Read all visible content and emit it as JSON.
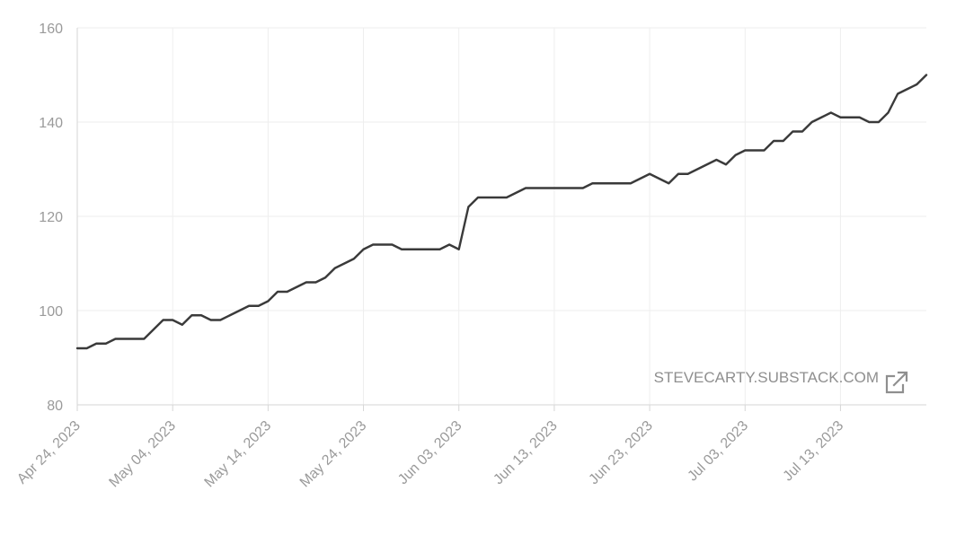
{
  "chart_data": {
    "type": "line",
    "title": "",
    "xlabel": "",
    "ylabel": "",
    "ylim": [
      80,
      160
    ],
    "yticks": [
      80,
      100,
      120,
      140,
      160
    ],
    "xticks": [
      "Apr 24, 2023",
      "May 04, 2023",
      "May 14, 2023",
      "May 24, 2023",
      "Jun 03, 2023",
      "Jun 13, 2023",
      "Jun 23, 2023",
      "Jul 03, 2023",
      "Jul 13, 2023"
    ],
    "xlim": [
      "2023-04-24",
      "2023-07-22"
    ],
    "grid": true,
    "line_color": "#3a3a3a",
    "grid_color": "#eeeeee",
    "axis_color": "#d6d6d6",
    "series": [
      {
        "x": [
          "2023-04-24",
          "2023-04-25",
          "2023-04-26",
          "2023-04-27",
          "2023-04-28",
          "2023-04-29",
          "2023-04-30",
          "2023-05-01",
          "2023-05-02",
          "2023-05-03",
          "2023-05-04",
          "2023-05-05",
          "2023-05-06",
          "2023-05-07",
          "2023-05-08",
          "2023-05-09",
          "2023-05-10",
          "2023-05-11",
          "2023-05-12",
          "2023-05-13",
          "2023-05-14",
          "2023-05-15",
          "2023-05-16",
          "2023-05-17",
          "2023-05-18",
          "2023-05-19",
          "2023-05-20",
          "2023-05-21",
          "2023-05-22",
          "2023-05-23",
          "2023-05-24",
          "2023-05-25",
          "2023-05-26",
          "2023-05-27",
          "2023-05-28",
          "2023-05-29",
          "2023-05-30",
          "2023-05-31",
          "2023-06-01",
          "2023-06-02",
          "2023-06-03",
          "2023-06-04",
          "2023-06-05",
          "2023-06-06",
          "2023-06-07",
          "2023-06-08",
          "2023-06-09",
          "2023-06-10",
          "2023-06-11",
          "2023-06-12",
          "2023-06-13",
          "2023-06-14",
          "2023-06-15",
          "2023-06-16",
          "2023-06-17",
          "2023-06-18",
          "2023-06-19",
          "2023-06-20",
          "2023-06-21",
          "2023-06-22",
          "2023-06-23",
          "2023-06-24",
          "2023-06-25",
          "2023-06-26",
          "2023-06-27",
          "2023-06-28",
          "2023-06-29",
          "2023-06-30",
          "2023-07-01",
          "2023-07-02",
          "2023-07-03",
          "2023-07-04",
          "2023-07-05",
          "2023-07-06",
          "2023-07-07",
          "2023-07-08",
          "2023-07-09",
          "2023-07-10",
          "2023-07-11",
          "2023-07-12",
          "2023-07-13",
          "2023-07-14",
          "2023-07-15",
          "2023-07-16",
          "2023-07-17",
          "2023-07-18",
          "2023-07-19",
          "2023-07-20",
          "2023-07-21",
          "2023-07-22"
        ],
        "y": [
          92,
          92,
          93,
          93,
          94,
          94,
          94,
          94,
          96,
          98,
          98,
          97,
          99,
          99,
          98,
          98,
          99,
          100,
          101,
          101,
          102,
          104,
          104,
          105,
          106,
          106,
          107,
          109,
          110,
          111,
          113,
          114,
          114,
          114,
          113,
          113,
          113,
          113,
          113,
          114,
          113,
          122,
          124,
          124,
          124,
          124,
          125,
          126,
          126,
          126,
          126,
          126,
          126,
          126,
          127,
          127,
          127,
          127,
          127,
          128,
          129,
          128,
          127,
          129,
          129,
          130,
          131,
          132,
          131,
          133,
          134,
          134,
          134,
          136,
          136,
          138,
          138,
          140,
          141,
          142,
          141,
          141,
          141,
          140,
          140,
          142,
          146,
          147,
          148,
          150
        ]
      }
    ]
  },
  "watermark": {
    "text": "STEVECARTY.SUBSTACK.COM",
    "icon": "external-link-icon",
    "color": "#8f8f8f"
  }
}
